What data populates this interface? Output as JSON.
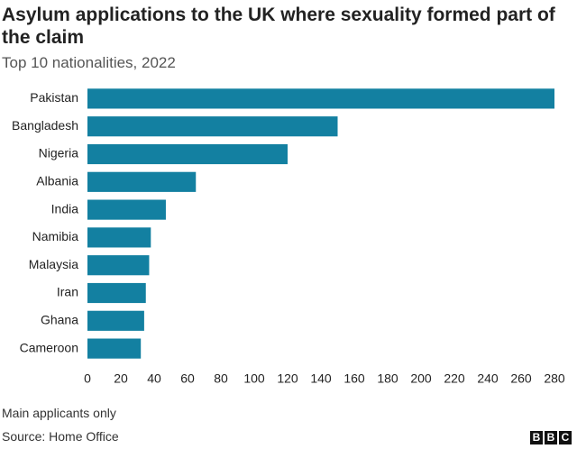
{
  "chart_data": {
    "type": "bar",
    "orientation": "horizontal",
    "title": "Asylum applications to the UK where sexuality formed part of the claim",
    "subtitle": "Top 10 nationalities, 2022",
    "categories": [
      "Pakistan",
      "Bangladesh",
      "Nigeria",
      "Albania",
      "India",
      "Namibia",
      "Malaysia",
      "Iran",
      "Ghana",
      "Cameroon"
    ],
    "values": [
      280,
      150,
      120,
      65,
      47,
      38,
      37,
      35,
      34,
      32
    ],
    "color": "#1380a1",
    "xlim": [
      0,
      280
    ],
    "xticks": [
      0,
      20,
      40,
      60,
      80,
      100,
      120,
      140,
      160,
      180,
      200,
      220,
      240,
      260,
      280
    ],
    "grid": false,
    "note": "Main applicants only",
    "source": "Source: Home Office",
    "logo": [
      "B",
      "B",
      "C"
    ]
  }
}
